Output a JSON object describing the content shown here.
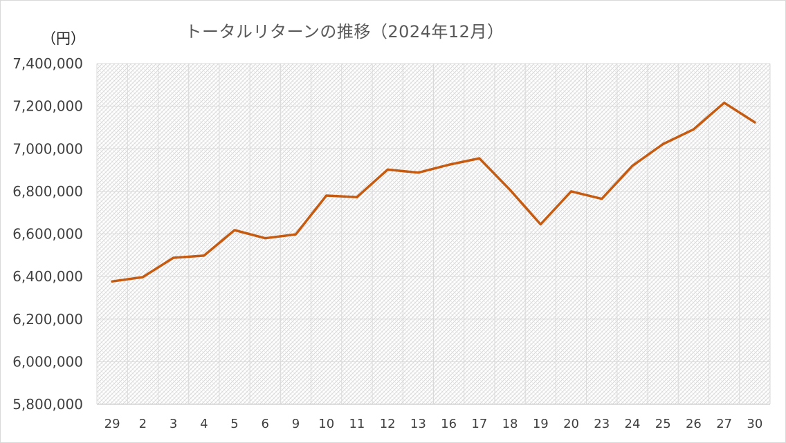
{
  "chart_data": {
    "type": "line",
    "title": "トータルリターンの推移（2024年12月）",
    "ylabel": "（円）",
    "xlabel": "",
    "ylim": [
      5800000,
      7400000
    ],
    "yticks": [
      "5,800,000",
      "6,000,000",
      "6,200,000",
      "6,400,000",
      "6,600,000",
      "6,800,000",
      "7,000,000",
      "7,200,000",
      "7,400,000"
    ],
    "ytick_values": [
      5800000,
      6000000,
      6200000,
      6400000,
      6600000,
      6800000,
      7000000,
      7200000,
      7400000
    ],
    "categories": [
      "29",
      "2",
      "3",
      "4",
      "5",
      "6",
      "9",
      "10",
      "11",
      "12",
      "13",
      "16",
      "17",
      "18",
      "19",
      "20",
      "23",
      "24",
      "25",
      "26",
      "27",
      "30"
    ],
    "series": [
      {
        "values": [
          6377000,
          6397000,
          6488000,
          6498000,
          6618000,
          6580000,
          6598000,
          6780000,
          6773000,
          6902000,
          6888000,
          6925000,
          6955000,
          6807000,
          6645000,
          6800000,
          6765000,
          6920000,
          7022000,
          7091000,
          7216000,
          7124000
        ]
      }
    ],
    "line_color": "#c55a11",
    "grid": true,
    "legend": "none"
  }
}
